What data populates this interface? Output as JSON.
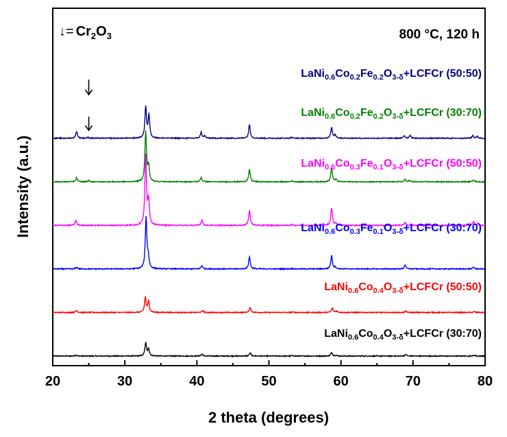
{
  "chart_data": {
    "type": "line",
    "title": "800 °C, 120 h",
    "xlabel": "2 theta (degrees)",
    "ylabel": "Intensity (a.u.)",
    "xlim": [
      20,
      80
    ],
    "xticks": [
      "20",
      "30",
      "40",
      "50",
      "60",
      "70",
      "80"
    ],
    "yticks_shown": false,
    "legend": {
      "arrow": "↓",
      "equals": "=",
      "symbol": "Cr",
      "sub1": "2",
      "mid": "O",
      "sub2": "3"
    },
    "cr2o3_marker_x": 25.0,
    "series": [
      {
        "name": "LaNi0.6Co0.4O3-δ+LCFCr (30:70)",
        "label": {
          "a": "LaNi",
          "b": "0.6",
          "c": "Co",
          "d": "0.4",
          "e": "O",
          "f": "3-δ",
          "g": "+LCFCr (30:70)"
        },
        "color": "#000000",
        "baseline": 0.0,
        "peaks": [
          [
            23.2,
            0.025
          ],
          [
            32.9,
            0.3
          ],
          [
            33.3,
            0.16
          ],
          [
            40.7,
            0.045
          ],
          [
            47.4,
            0.07
          ],
          [
            53.3,
            0.01
          ],
          [
            58.7,
            0.08
          ],
          [
            59.3,
            0.02
          ],
          [
            69.0,
            0.035
          ],
          [
            78.5,
            0.02
          ]
        ]
      },
      {
        "name": "LaNi0.6Co0.4O3-δ+LCFCr (50:50)",
        "label": {
          "a": "LaNi",
          "b": "0.6",
          "c": "Co",
          "d": "0.4",
          "e": "O",
          "f": "3-δ",
          "g": "+LCFCr (50:50)"
        },
        "color": "#ff0000",
        "baseline": 1.0,
        "peaks": [
          [
            23.3,
            0.05
          ],
          [
            32.85,
            0.35
          ],
          [
            33.3,
            0.25
          ],
          [
            40.8,
            0.045
          ],
          [
            47.4,
            0.12
          ],
          [
            53.3,
            0.01
          ],
          [
            58.8,
            0.1
          ],
          [
            59.4,
            0.03
          ],
          [
            69.0,
            0.03
          ],
          [
            78.5,
            0.02
          ]
        ]
      },
      {
        "name": "LaNi0.6Co0.3Fe0.1O3-δ+LCFCr (30:70)",
        "label": {
          "a": "LaNi",
          "b": "0.6",
          "c": "Co",
          "d": "0.3",
          "e": "Fe",
          "f": "0.1",
          "g": "O",
          "h": "3-δ",
          "i": "+LCFCr (30:70)"
        },
        "color": "#0000ff",
        "baseline": 2.0,
        "peaks": [
          [
            23.3,
            0.04
          ],
          [
            32.95,
            1.18
          ],
          [
            33.25,
            0.25
          ],
          [
            40.7,
            0.08
          ],
          [
            47.3,
            0.28
          ],
          [
            53.2,
            0.01
          ],
          [
            58.7,
            0.3
          ],
          [
            59.2,
            0.04
          ],
          [
            68.9,
            0.09
          ],
          [
            78.4,
            0.04
          ]
        ]
      },
      {
        "name": "LaNi0.6Co0.3Fe0.1O3-δ+LCFCr (50:50)",
        "label": {
          "a": "LaNi",
          "b": "0.6",
          "c": "Co",
          "d": "0.3",
          "e": "Fe",
          "f": "0.1",
          "g": "O",
          "h": "3-δ",
          "i": "+LCFCr (50:50)"
        },
        "color": "#ff00ff",
        "baseline": 3.0,
        "peaks": [
          [
            23.2,
            0.11
          ],
          [
            32.9,
            1.6
          ],
          [
            33.3,
            0.55
          ],
          [
            40.7,
            0.12
          ],
          [
            47.3,
            0.35
          ],
          [
            53.2,
            0.02
          ],
          [
            58.7,
            0.4
          ],
          [
            59.3,
            0.05
          ],
          [
            68.9,
            0.07
          ],
          [
            78.4,
            0.08
          ],
          [
            79.0,
            0.04
          ]
        ]
      },
      {
        "name": "LaNi0.6Co0.2Fe0.2O3-δ+LCFCr (30:70)",
        "label": {
          "a": "LaNi",
          "b": "0.6",
          "c": "Co",
          "d": "0.2",
          "e": "Fe",
          "f": "0.2",
          "g": "O",
          "h": "3-δ",
          "i": "+LCFCr (30:70)"
        },
        "color": "#008000",
        "baseline": 4.0,
        "peaks": [
          [
            23.3,
            0.09
          ],
          [
            25.0,
            0.03
          ],
          [
            32.9,
            1.15
          ],
          [
            33.3,
            0.35
          ],
          [
            40.6,
            0.1
          ],
          [
            47.3,
            0.28
          ],
          [
            53.2,
            0.02
          ],
          [
            58.7,
            0.32
          ],
          [
            59.3,
            0.05
          ],
          [
            68.9,
            0.05
          ],
          [
            69.5,
            0.03
          ],
          [
            78.4,
            0.05
          ]
        ]
      },
      {
        "name": "LaNi0.6Co0.2Fe0.2O3-δ+LCFCr (50:50)",
        "label": {
          "a": "LaNi",
          "b": "0.6",
          "c": "Co",
          "d": "0.2",
          "e": "Fe",
          "f": "0.2",
          "g": "O",
          "h": "3-δ",
          "i": "+LCFCr (50:50)"
        },
        "color": "#000080",
        "baseline": 5.0,
        "peaks": [
          [
            23.3,
            0.16
          ],
          [
            24.9,
            0.02
          ],
          [
            32.9,
            0.72
          ],
          [
            33.35,
            0.52
          ],
          [
            40.6,
            0.14
          ],
          [
            41.1,
            0.05
          ],
          [
            47.3,
            0.32
          ],
          [
            53.2,
            0.02
          ],
          [
            58.7,
            0.25
          ],
          [
            59.2,
            0.08
          ],
          [
            68.8,
            0.06
          ],
          [
            69.6,
            0.07
          ],
          [
            78.3,
            0.06
          ],
          [
            78.9,
            0.04
          ]
        ]
      }
    ]
  }
}
